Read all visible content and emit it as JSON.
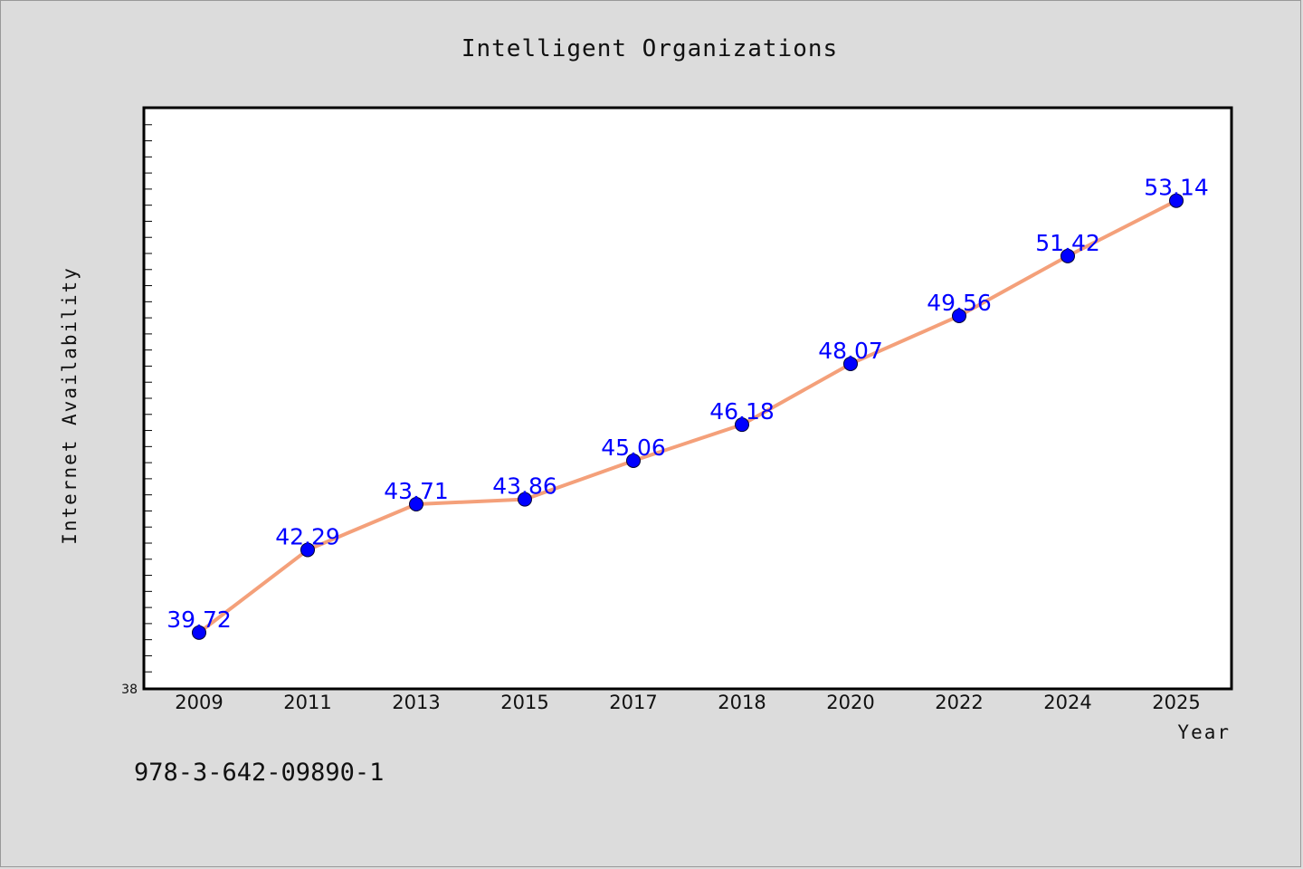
{
  "chart_data": {
    "type": "line",
    "title": "Intelligent Organizations",
    "xlabel": "Year",
    "ylabel": "Internet Availability",
    "categories": [
      "2009",
      "2011",
      "2013",
      "2015",
      "2017",
      "2018",
      "2020",
      "2022",
      "2024",
      "2025"
    ],
    "series": [
      {
        "values": [
          39.72,
          42.29,
          43.71,
          43.86,
          45.06,
          46.18,
          48.07,
          49.56,
          51.42,
          53.14
        ],
        "labels": [
          "39.72",
          "42.29",
          "43.71",
          "43.86",
          "45.06",
          "46.18",
          "48.07",
          "49.56",
          "51.42",
          "53.14"
        ],
        "line_color": "#f4a07a",
        "marker_color": "#0000ff"
      }
    ],
    "ylim": [
      38,
      56
    ],
    "y_min_tick_label": "38",
    "grid": false,
    "legend": "none"
  },
  "footer": {
    "isbn": "978-3-642-09890-1"
  },
  "colors": {
    "background": "#dcdcdc",
    "plot_background": "#ffffff",
    "line": "#f4a07a",
    "marker": "#0000ff",
    "data_label": "#0000ff"
  }
}
